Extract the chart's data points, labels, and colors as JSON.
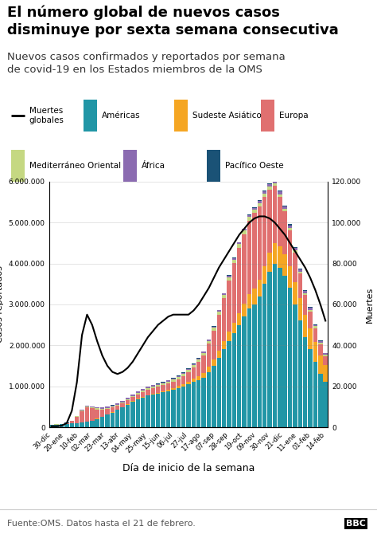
{
  "title": "El número global de nuevos casos\ndisminuye por sexta semana consecutiva",
  "subtitle": "Nuevos casos confirmados y reportados por semana\nde covid-19 en los Estados miembros de la OMS",
  "xlabel": "Día de inicio de la semana",
  "ylabel_left": "Casos reportados",
  "ylabel_right": "Muertes",
  "source": "Fuente:OMS. Datos hasta el 21 de febrero.",
  "x_labels": [
    "30-dic",
    "20-ene",
    "10-feb",
    "02-mar",
    "23-mar",
    "13-abr",
    "04-may",
    "25-may",
    "15-jun",
    "06-jul",
    "27-jul",
    "17-ago",
    "07-sep",
    "28-sep",
    "19-oct",
    "09-nov",
    "30-nov",
    "21-dic",
    "11-ene",
    "01-feb",
    "14-feb"
  ],
  "colors": {
    "americas": "#2196A6",
    "southeast_asia": "#F5A623",
    "europe": "#E07070",
    "eastern_med": "#C5D882",
    "africa": "#8B6BB1",
    "western_pacific": "#1A5276",
    "deaths": "#000000"
  },
  "legend_labels": {
    "deaths": "Muertes\nglobales",
    "americas": "Américas",
    "southeast_asia": "Sudeste Asiático",
    "europe": "Europa",
    "eastern_med": "Mediterráneo Oriental",
    "africa": "África",
    "western_pacific": "Pacífico Oeste"
  },
  "ylim_left": [
    0,
    6000000
  ],
  "ylim_right": [
    0,
    120000
  ],
  "background_color": "#FFFFFF",
  "title_fontsize": 13,
  "subtitle_fontsize": 9.5,
  "source_fontsize": 8
}
